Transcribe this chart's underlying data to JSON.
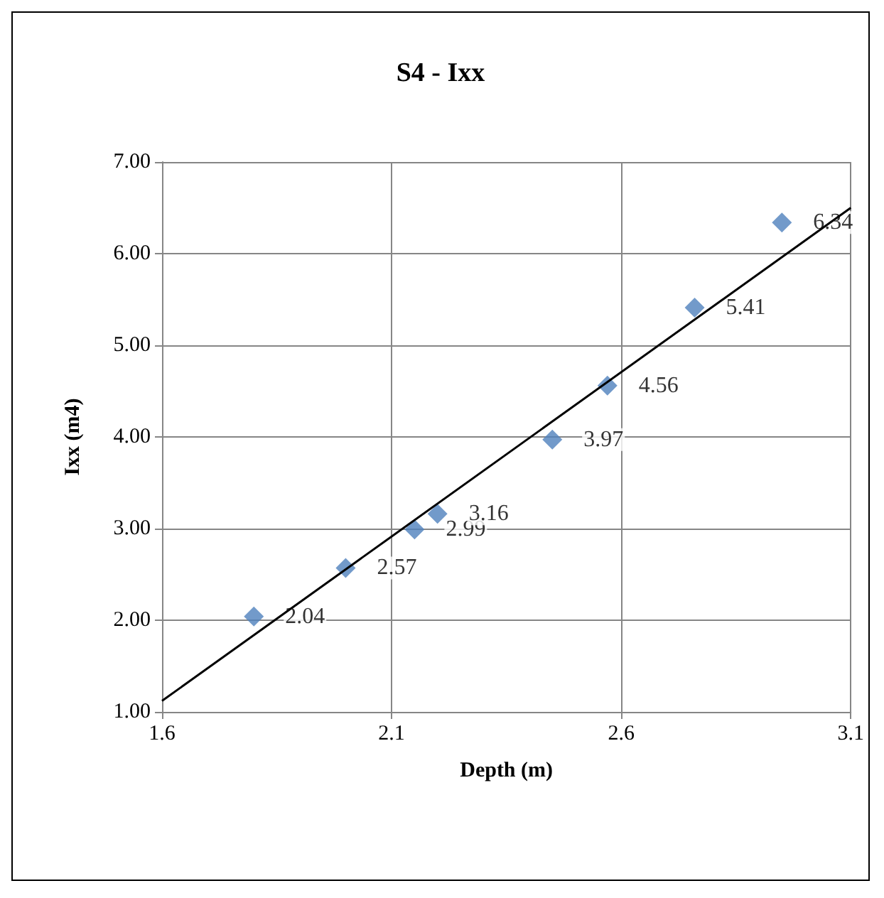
{
  "chart_data": {
    "type": "scatter",
    "title": "S4 - Ixx",
    "xlabel": "Depth (m)",
    "ylabel": "Ixx (m4)",
    "x": [
      1.8,
      2.0,
      2.15,
      2.2,
      2.45,
      2.57,
      2.76,
      2.95
    ],
    "series": [
      {
        "color": "#4f81bd",
        "values": [
          2.04,
          2.57,
          2.99,
          3.16,
          3.97,
          4.56,
          5.41,
          6.34
        ],
        "value_labels": [
          "2.04",
          "2.57",
          "2.99",
          "3.16",
          "3.97",
          "4.56",
          "5.41",
          "6.34"
        ],
        "marker": "diamond"
      },
      {
        "type": "line",
        "color": "#000000",
        "x": [
          1.6,
          3.1
        ],
        "values": [
          1.12,
          6.5
        ],
        "marker": "none",
        "line_style": "solid"
      }
    ],
    "xlim": [
      1.6,
      3.1
    ],
    "xticks": [
      1.6,
      2.1,
      2.6,
      3.1
    ],
    "ylim": [
      1,
      7
    ],
    "yticks": [
      {
        "value": 1,
        "label": "1.00"
      },
      {
        "value": 2,
        "label": "2.00"
      },
      {
        "value": 3,
        "label": "3.00"
      },
      {
        "value": 4,
        "label": "4.00"
      },
      {
        "value": 5,
        "label": "5.00"
      },
      {
        "value": 6,
        "label": "6.00"
      },
      {
        "value": 7,
        "label": "7.00"
      }
    ],
    "grid": true
  }
}
